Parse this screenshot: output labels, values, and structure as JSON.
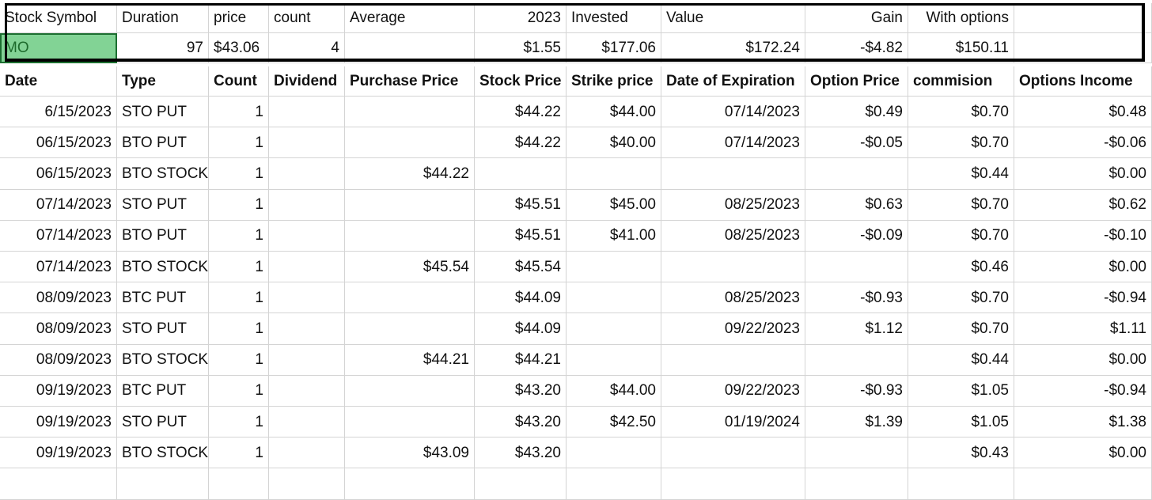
{
  "summary": {
    "headers": [
      "Stock Symbol",
      "Duration",
      "price",
      "count",
      "Average",
      "2023",
      "Invested",
      "Value",
      "Gain",
      "With options",
      ""
    ],
    "values": [
      "MO",
      "97",
      "$43.06",
      "4",
      "",
      "$1.55",
      "$177.06",
      "$172.24",
      "-$4.82",
      "$150.11",
      ""
    ]
  },
  "table": {
    "headers": [
      "Date",
      "Type",
      "Count",
      "Dividend",
      "Purchase Price",
      "Stock Price",
      "Strike price",
      "Date of Expiration",
      "Option Price",
      "commision",
      "Options Income"
    ],
    "rows": [
      [
        "6/15/2023",
        "STO PUT",
        "1",
        "",
        "",
        "$44.22",
        "$44.00",
        "07/14/2023",
        "$0.49",
        "$0.70",
        "$0.48"
      ],
      [
        "06/15/2023",
        "BTO PUT",
        "1",
        "",
        "",
        "$44.22",
        "$40.00",
        "07/14/2023",
        "-$0.05",
        "$0.70",
        "-$0.06"
      ],
      [
        "06/15/2023",
        "BTO STOCK",
        "1",
        "",
        "$44.22",
        "",
        "",
        "",
        "",
        "$0.44",
        "$0.00"
      ],
      [
        "07/14/2023",
        "STO PUT",
        "1",
        "",
        "",
        "$45.51",
        "$45.00",
        "08/25/2023",
        "$0.63",
        "$0.70",
        "$0.62"
      ],
      [
        "07/14/2023",
        "BTO PUT",
        "1",
        "",
        "",
        "$45.51",
        "$41.00",
        "08/25/2023",
        "-$0.09",
        "$0.70",
        "-$0.10"
      ],
      [
        "07/14/2023",
        "BTO STOCK",
        "1",
        "",
        "$45.54",
        "$45.54",
        "",
        "",
        "",
        "$0.46",
        "$0.00"
      ],
      [
        "08/09/2023",
        "BTC PUT",
        "1",
        "",
        "",
        "$44.09",
        "",
        "08/25/2023",
        "-$0.93",
        "$0.70",
        "-$0.94"
      ],
      [
        "08/09/2023",
        "STO PUT",
        "1",
        "",
        "",
        "$44.09",
        "",
        "09/22/2023",
        "$1.12",
        "$0.70",
        "$1.11"
      ],
      [
        "08/09/2023",
        "BTO STOCK",
        "1",
        "",
        "$44.21",
        "$44.21",
        "",
        "",
        "",
        "$0.44",
        "$0.00"
      ],
      [
        "09/19/2023",
        "BTC PUT",
        "1",
        "",
        "",
        "$43.20",
        "$44.00",
        "09/22/2023",
        "-$0.93",
        "$1.05",
        "-$0.94"
      ],
      [
        "09/19/2023",
        "STO PUT",
        "1",
        "",
        "",
        "$43.20",
        "$42.50",
        "01/19/2024",
        "$1.39",
        "$1.05",
        "$1.38"
      ],
      [
        "09/19/2023",
        "BTO STOCK",
        "1",
        "",
        "$43.09",
        "$43.20",
        "",
        "",
        "",
        "$0.43",
        "$0.00"
      ],
      [
        "",
        "",
        "",
        "",
        "",
        "",
        "",
        "",
        "",
        "",
        ""
      ]
    ]
  },
  "colors": {
    "selected_fill": "#82d395",
    "selected_border": "#1c6e30",
    "gridline": "#d4d4d4"
  }
}
